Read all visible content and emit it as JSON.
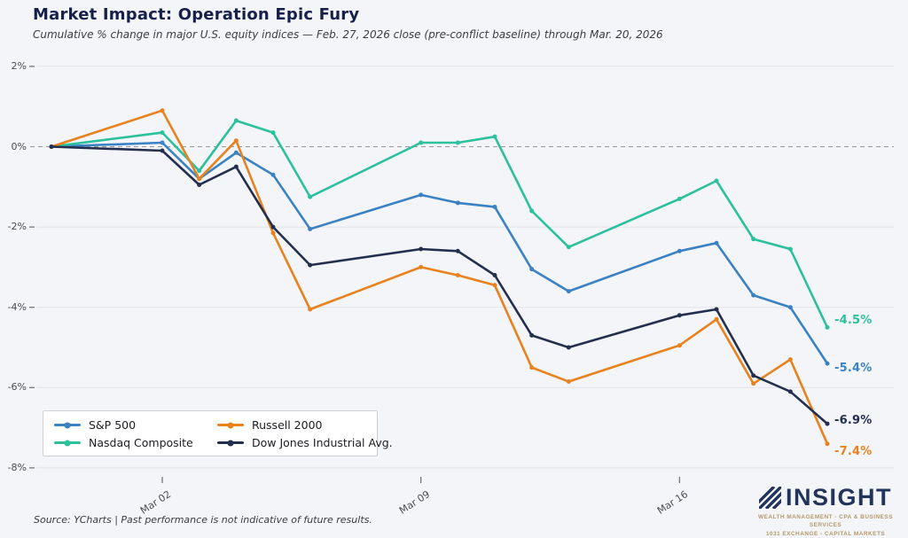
{
  "header": {
    "title": "Market Impact: Operation Epic Fury",
    "subtitle": "Cumulative % change in major U.S. equity indices — Feb. 27, 2026 close (pre-conflict baseline) through Mar. 20, 2026"
  },
  "chart_data": {
    "type": "line",
    "title": "Market Impact: Operation Epic Fury",
    "x_dates": [
      "Feb 27",
      "Mar 02",
      "Mar 03",
      "Mar 04",
      "Mar 05",
      "Mar 06",
      "Mar 09",
      "Mar 10",
      "Mar 11",
      "Mar 12",
      "Mar 13",
      "Mar 16",
      "Mar 17",
      "Mar 18",
      "Mar 19",
      "Mar 20"
    ],
    "x_day_offsets": [
      0,
      3,
      4,
      5,
      6,
      7,
      10,
      11,
      12,
      13,
      14,
      17,
      18,
      19,
      20,
      21
    ],
    "ylim": [
      -8,
      2
    ],
    "grid": true,
    "zero_line_dashed": true,
    "y_ticks": [
      {
        "v": 2,
        "label": "2%"
      },
      {
        "v": 0,
        "label": "0%"
      },
      {
        "v": -2,
        "label": "-2%"
      },
      {
        "v": -4,
        "label": "-4%"
      },
      {
        "v": -6,
        "label": "-6%"
      },
      {
        "v": -8,
        "label": "-8%"
      }
    ],
    "x_ticks": [
      {
        "day": 3,
        "label": "Mar 02"
      },
      {
        "day": 10,
        "label": "Mar 09"
      },
      {
        "day": 17,
        "label": "Mar 16"
      }
    ],
    "legend_position": "lower-left",
    "series": [
      {
        "name": "S&P 500",
        "color": "#3a82c4",
        "values": [
          0,
          0.1,
          -0.8,
          -0.15,
          -0.7,
          -2.05,
          -1.2,
          -1.4,
          -1.5,
          -3.05,
          -3.6,
          -2.6,
          -2.4,
          -3.7,
          -4.0,
          -5.4
        ],
        "end_label": "-5.4%"
      },
      {
        "name": "Nasdaq Composite",
        "color": "#2cc09c",
        "values": [
          0,
          0.35,
          -0.6,
          0.65,
          0.35,
          -1.25,
          0.1,
          0.1,
          0.25,
          -1.6,
          -2.5,
          -1.3,
          -0.85,
          -2.3,
          -2.55,
          -4.5
        ],
        "end_label": "-4.5%"
      },
      {
        "name": "Russell 2000",
        "color": "#e8821e",
        "values": [
          0,
          0.9,
          -0.8,
          0.15,
          -2.15,
          -4.05,
          -3.0,
          -3.2,
          -3.45,
          -5.5,
          -5.85,
          -4.95,
          -4.3,
          -5.9,
          -5.3,
          -7.4
        ],
        "end_label": "-7.4%"
      },
      {
        "name": "Dow Jones Industrial Avg.",
        "color": "#242f4e",
        "values": [
          0,
          -0.1,
          -0.95,
          -0.5,
          -2.0,
          -2.95,
          -2.55,
          -2.6,
          -3.2,
          -4.7,
          -5.0,
          -4.2,
          -4.05,
          -5.7,
          -6.1,
          -6.9
        ],
        "end_label": "-6.9%"
      }
    ]
  },
  "footer": {
    "source": "Source: YCharts  |  Past performance is not indicative of future results."
  },
  "logo": {
    "name": "INSIGHT",
    "tagline1": "WEALTH MANAGEMENT  -  CPA & BUSINESS SERVICES",
    "tagline2": "1031 EXCHANGE  -  CAPITAL MARKETS"
  }
}
